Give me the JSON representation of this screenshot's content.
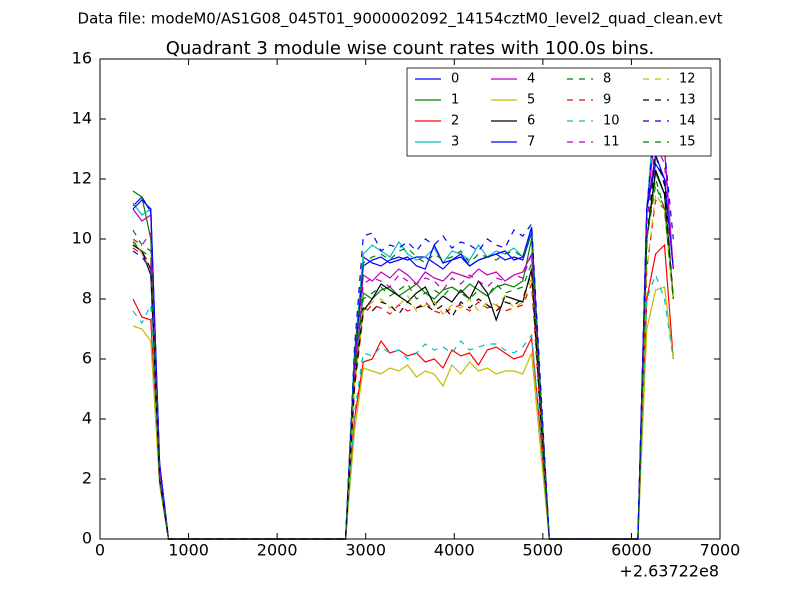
{
  "chart_data": {
    "type": "line",
    "suptitle": "Data file: modeM0/AS1G08_045T01_9000002092_14154cztM0_level2_quad_clean.evt",
    "title": "Quadrant 3 module wise count rates with 100.0s bins.",
    "x_offset_label": "+2.63722e8",
    "xlim": [
      0,
      7000
    ],
    "xticks": [
      0,
      1000,
      2000,
      3000,
      4000,
      5000,
      6000,
      7000
    ],
    "ylim": [
      0,
      16
    ],
    "yticks": [
      0,
      2,
      4,
      6,
      8,
      10,
      12,
      14,
      16
    ],
    "legend": "upper right",
    "legend_columns": 4,
    "x": [
      373,
      473,
      573,
      673,
      773,
      2773,
      2873,
      2973,
      3073,
      3173,
      3273,
      3373,
      3473,
      3573,
      3673,
      3773,
      3873,
      3973,
      4073,
      4173,
      4273,
      4373,
      4473,
      4573,
      4673,
      4773,
      4873,
      4973,
      5073,
      6073,
      6173,
      6273,
      6373,
      6473
    ],
    "series": [
      {
        "name": "0",
        "color": "#0000ff",
        "linestyle": "solid",
        "values": [
          11.1,
          11.4,
          10.9,
          2.5,
          0,
          0,
          6.0,
          9.4,
          9.2,
          9.1,
          9.3,
          9.4,
          9.3,
          9.4,
          9.4,
          9.2,
          9.0,
          9.3,
          9.4,
          9.1,
          9.3,
          9.4,
          9.5,
          9.3,
          9.4,
          9.3,
          10.2,
          4.8,
          0,
          0,
          11.0,
          12.5,
          12.0,
          9.0
        ]
      },
      {
        "name": "1",
        "color": "#008000",
        "linestyle": "solid",
        "values": [
          11.6,
          11.4,
          10.0,
          2.0,
          0,
          0,
          5.5,
          8.2,
          8.0,
          8.3,
          8.4,
          8.1,
          8.3,
          8.5,
          8.2,
          8.0,
          8.3,
          8.4,
          8.2,
          8.5,
          8.3,
          8.1,
          8.4,
          8.5,
          8.4,
          8.6,
          10.0,
          4.5,
          0,
          0,
          10.0,
          12.2,
          11.5,
          8.0
        ]
      },
      {
        "name": "2",
        "color": "#ff0000",
        "linestyle": "solid",
        "values": [
          8.0,
          7.4,
          7.3,
          2.0,
          0,
          0,
          4.0,
          5.9,
          6.0,
          6.6,
          6.2,
          6.3,
          6.1,
          6.2,
          5.9,
          6.0,
          5.7,
          6.3,
          6.1,
          6.2,
          5.8,
          6.3,
          6.4,
          6.2,
          6.0,
          6.1,
          6.7,
          3.5,
          0,
          0,
          8.0,
          9.5,
          9.8,
          6.0
        ]
      },
      {
        "name": "3",
        "color": "#00bfbf",
        "linestyle": "solid",
        "values": [
          11.2,
          10.8,
          11.0,
          2.5,
          0,
          0,
          6.2,
          9.5,
          9.8,
          9.6,
          9.4,
          9.9,
          9.5,
          9.3,
          9.4,
          9.7,
          9.2,
          9.6,
          9.5,
          9.3,
          9.8,
          9.4,
          9.6,
          9.5,
          9.7,
          9.4,
          10.3,
          5.0,
          0,
          0,
          11.0,
          14.7,
          13.0,
          9.0
        ]
      },
      {
        "name": "4",
        "color": "#bf00bf",
        "linestyle": "solid",
        "values": [
          11.0,
          10.6,
          10.8,
          2.5,
          0,
          0,
          5.8,
          8.8,
          8.6,
          8.9,
          8.7,
          9.0,
          8.8,
          8.5,
          8.9,
          8.7,
          8.6,
          8.9,
          8.8,
          8.7,
          9.0,
          8.8,
          8.9,
          8.6,
          8.8,
          8.9,
          9.5,
          4.6,
          0,
          0,
          11.0,
          13.7,
          13.0,
          9.0
        ]
      },
      {
        "name": "5",
        "color": "#bfbf00",
        "linestyle": "solid",
        "values": [
          7.1,
          7.0,
          6.6,
          1.8,
          0,
          0,
          3.6,
          5.7,
          5.6,
          5.5,
          5.7,
          5.6,
          5.8,
          5.4,
          5.6,
          5.5,
          5.1,
          5.8,
          5.5,
          5.9,
          5.6,
          5.7,
          5.5,
          5.6,
          5.6,
          5.5,
          6.2,
          3.0,
          0,
          0,
          7.0,
          8.3,
          8.4,
          6.0
        ]
      },
      {
        "name": "6",
        "color": "#000000",
        "linestyle": "solid",
        "values": [
          9.8,
          9.6,
          8.8,
          2.0,
          0,
          0,
          5.2,
          7.6,
          8.0,
          8.5,
          8.3,
          8.1,
          7.9,
          8.2,
          8.4,
          7.8,
          8.1,
          7.9,
          8.3,
          8.0,
          8.6,
          8.2,
          7.3,
          8.1,
          8.0,
          7.9,
          9.0,
          4.2,
          0,
          0,
          10.0,
          12.3,
          11.5,
          8.0
        ]
      },
      {
        "name": "7",
        "color": "#0000ff",
        "linestyle": "solid",
        "values": [
          11.0,
          11.3,
          11.0,
          2.5,
          0,
          0,
          6.0,
          9.1,
          9.3,
          9.4,
          9.2,
          9.3,
          9.4,
          9.1,
          9.0,
          9.8,
          9.2,
          9.3,
          9.5,
          9.1,
          9.3,
          9.4,
          9.5,
          9.6,
          9.3,
          9.4,
          10.4,
          4.9,
          0,
          0,
          11.0,
          12.8,
          12.0,
          9.0
        ]
      },
      {
        "name": "8",
        "color": "#008000",
        "linestyle": "dashed",
        "values": [
          10.3,
          9.8,
          9.6,
          2.0,
          0,
          0,
          5.4,
          8.0,
          8.2,
          8.4,
          8.1,
          8.3,
          8.5,
          8.0,
          8.2,
          8.3,
          8.1,
          8.4,
          8.2,
          8.0,
          8.3,
          8.1,
          8.5,
          8.2,
          8.3,
          8.4,
          9.2,
          4.4,
          0,
          0,
          10.0,
          11.8,
          11.0,
          8.0
        ]
      },
      {
        "name": "9",
        "color": "#ff0000",
        "linestyle": "dashed",
        "values": [
          9.7,
          9.5,
          9.2,
          2.0,
          0,
          0,
          5.0,
          7.5,
          7.8,
          7.7,
          7.5,
          7.8,
          7.6,
          7.7,
          7.9,
          7.6,
          7.5,
          7.7,
          7.8,
          7.6,
          7.9,
          7.7,
          7.8,
          7.6,
          7.7,
          7.8,
          8.5,
          4.0,
          0,
          0,
          9.0,
          11.3,
          11.0,
          8.0
        ]
      },
      {
        "name": "10",
        "color": "#00bfbf",
        "linestyle": "dashed",
        "values": [
          7.6,
          7.2,
          7.8,
          2.0,
          0,
          0,
          4.2,
          6.2,
          6.1,
          6.4,
          6.2,
          6.3,
          6.0,
          6.2,
          6.5,
          6.3,
          6.4,
          6.2,
          6.6,
          6.3,
          6.4,
          6.5,
          6.5,
          6.3,
          6.2,
          6.4,
          6.8,
          3.6,
          0,
          0,
          8.0,
          8.8,
          8.0,
          6.0
        ]
      },
      {
        "name": "11",
        "color": "#bf00bf",
        "linestyle": "dashed",
        "values": [
          10.0,
          9.8,
          10.2,
          2.3,
          0,
          0,
          5.6,
          8.5,
          8.7,
          8.6,
          8.4,
          8.8,
          8.6,
          8.5,
          8.7,
          8.6,
          8.3,
          8.7,
          8.5,
          8.8,
          8.6,
          8.4,
          8.7,
          8.6,
          8.8,
          8.7,
          9.5,
          4.5,
          0,
          0,
          10.5,
          13.2,
          12.5,
          9.0
        ]
      },
      {
        "name": "12",
        "color": "#bfbf00",
        "linestyle": "dashed",
        "values": [
          10.0,
          9.5,
          9.0,
          2.0,
          0,
          0,
          5.1,
          7.6,
          7.9,
          8.0,
          7.7,
          7.8,
          8.1,
          7.6,
          7.8,
          7.9,
          7.5,
          7.8,
          7.7,
          8.0,
          7.6,
          7.9,
          7.8,
          8.1,
          7.7,
          7.9,
          8.7,
          4.1,
          0,
          0,
          9.0,
          11.5,
          11.0,
          8.0
        ]
      },
      {
        "name": "13",
        "color": "#000000",
        "linestyle": "dashed",
        "values": [
          9.8,
          9.6,
          9.0,
          2.0,
          0,
          0,
          5.1,
          7.7,
          7.6,
          7.9,
          7.8,
          7.5,
          7.9,
          7.7,
          7.8,
          7.6,
          7.8,
          7.4,
          7.9,
          7.7,
          8.0,
          7.8,
          7.6,
          7.9,
          7.8,
          8.0,
          8.9,
          4.1,
          0,
          0,
          10.0,
          12.8,
          11.8,
          8.0
        ]
      },
      {
        "name": "14",
        "color": "#0000ff",
        "linestyle": "dashed",
        "values": [
          9.6,
          9.4,
          9.0,
          2.0,
          0,
          0,
          6.4,
          10.1,
          10.2,
          9.6,
          9.8,
          9.7,
          9.9,
          9.6,
          10.0,
          9.8,
          10.1,
          9.7,
          9.9,
          9.8,
          9.6,
          10.0,
          9.8,
          9.7,
          10.3,
          10.1,
          10.5,
          5.2,
          0,
          0,
          11.0,
          14.2,
          13.0,
          10.0
        ]
      },
      {
        "name": "15",
        "color": "#008000",
        "linestyle": "dashed",
        "values": [
          9.9,
          9.6,
          9.4,
          2.0,
          0,
          0,
          6.1,
          9.2,
          9.4,
          9.5,
          9.3,
          9.6,
          9.7,
          9.4,
          9.2,
          9.5,
          9.3,
          9.4,
          9.6,
          9.2,
          9.5,
          9.4,
          9.3,
          9.5,
          9.6,
          9.4,
          10.2,
          4.9,
          0,
          0,
          10.0,
          12.0,
          11.0,
          8.0
        ]
      }
    ]
  }
}
